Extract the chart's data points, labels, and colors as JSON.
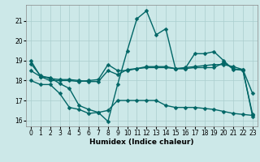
{
  "xlabel": "Humidex (Indice chaleur)",
  "background_color": "#cce8e8",
  "grid_color": "#aacece",
  "line_color": "#006666",
  "xlim": [
    -0.5,
    23.5
  ],
  "ylim": [
    15.7,
    21.8
  ],
  "yticks": [
    16,
    17,
    18,
    19,
    20,
    21
  ],
  "xticks": [
    0,
    1,
    2,
    3,
    4,
    5,
    6,
    7,
    8,
    9,
    10,
    11,
    12,
    13,
    14,
    15,
    16,
    17,
    18,
    19,
    20,
    21,
    22,
    23
  ],
  "series": {
    "line1": {
      "x": [
        0,
        1,
        2,
        3,
        4,
        5,
        6,
        7,
        8,
        9,
        10,
        11,
        12,
        13,
        14,
        15,
        16,
        17,
        18,
        19,
        20,
        21,
        22,
        23
      ],
      "y": [
        19.0,
        18.2,
        18.15,
        17.85,
        17.6,
        16.75,
        16.55,
        16.4,
        15.95,
        17.8,
        19.5,
        21.1,
        21.5,
        20.3,
        20.6,
        18.6,
        18.6,
        19.35,
        19.35,
        19.45,
        19.0,
        18.55,
        18.55,
        17.35
      ]
    },
    "line2": {
      "x": [
        0,
        1,
        2,
        3,
        4,
        5,
        6,
        7,
        8,
        9,
        10,
        11,
        12,
        13,
        14,
        15,
        16,
        17,
        18,
        19,
        20,
        21,
        22,
        23
      ],
      "y": [
        18.5,
        18.2,
        18.0,
        18.0,
        18.0,
        17.95,
        18.0,
        18.05,
        18.8,
        18.5,
        18.5,
        18.6,
        18.65,
        18.65,
        18.65,
        18.6,
        18.6,
        18.65,
        18.65,
        18.65,
        18.9,
        18.6,
        18.5,
        16.3
      ]
    },
    "line3": {
      "x": [
        0,
        1,
        2,
        3,
        4,
        5,
        6,
        7,
        8,
        9,
        10,
        11,
        12,
        13,
        14,
        15,
        16,
        17,
        18,
        19,
        20,
        21,
        22,
        23
      ],
      "y": [
        18.85,
        18.25,
        18.1,
        18.05,
        18.05,
        18.0,
        17.95,
        17.95,
        18.5,
        18.3,
        18.55,
        18.6,
        18.7,
        18.7,
        18.7,
        18.6,
        18.65,
        18.7,
        18.75,
        18.8,
        18.8,
        18.7,
        18.55,
        16.2
      ]
    },
    "line4": {
      "x": [
        0,
        1,
        2,
        3,
        4,
        5,
        6,
        7,
        8,
        9,
        10,
        11,
        12,
        13,
        14,
        15,
        16,
        17,
        18,
        19,
        20,
        21,
        22,
        23
      ],
      "y": [
        18.0,
        17.8,
        17.8,
        17.35,
        16.65,
        16.55,
        16.35,
        16.4,
        16.5,
        17.0,
        17.0,
        17.0,
        17.0,
        17.0,
        16.75,
        16.65,
        16.65,
        16.65,
        16.6,
        16.55,
        16.45,
        16.35,
        16.3,
        16.25
      ]
    }
  },
  "marker_size": 2.5,
  "line_width": 1.0,
  "tick_fontsize": 5.5,
  "xlabel_fontsize": 6.5
}
